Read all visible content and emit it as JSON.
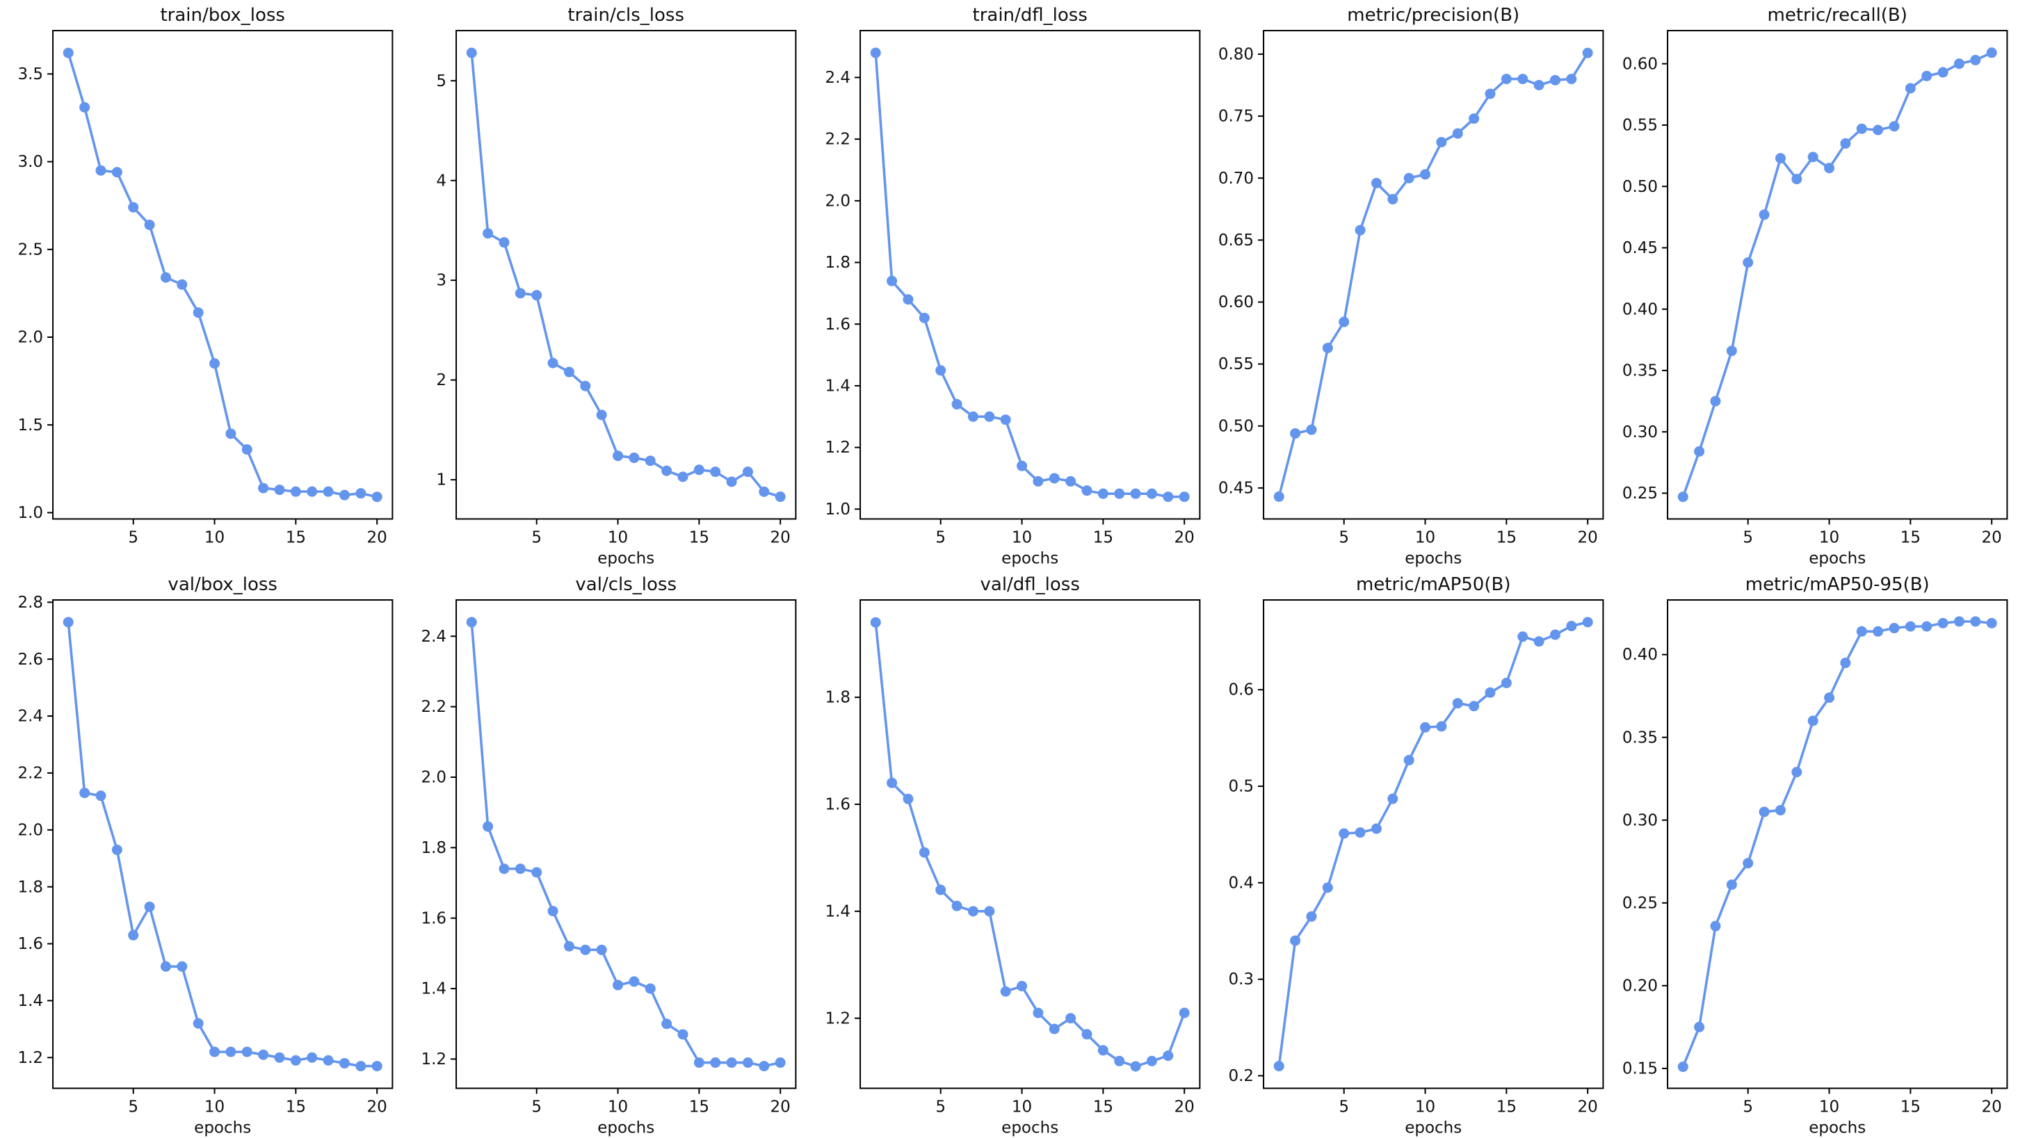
{
  "figure": {
    "rows": 2,
    "cols": 5,
    "background": "#ffffff",
    "line_color": "#6495ED",
    "marker_color": "#6495ED",
    "axis_color": "#000000",
    "text_color": "#111111",
    "grid": false,
    "legend": "none"
  },
  "chart_data": [
    {
      "type": "line",
      "title": "train/box_loss",
      "xlabel": "",
      "ylabel": "",
      "x": [
        1,
        2,
        3,
        4,
        5,
        6,
        7,
        8,
        9,
        10,
        11,
        12,
        13,
        14,
        15,
        16,
        17,
        18,
        19,
        20
      ],
      "values": [
        3.62,
        3.31,
        2.95,
        2.94,
        2.74,
        2.64,
        2.34,
        2.3,
        2.14,
        1.85,
        1.45,
        1.36,
        1.14,
        1.13,
        1.12,
        1.12,
        1.12,
        1.1,
        1.11,
        1.09
      ],
      "xticks": [
        5,
        10,
        15,
        20
      ],
      "ytick_values": [
        1.0,
        1.5,
        2.0,
        2.5,
        3.0,
        3.5
      ],
      "ytick_labels": [
        "1.0",
        "1.5",
        "2.0",
        "2.5",
        "3.0",
        "3.5"
      ],
      "xlim": [
        0.05,
        20.95
      ],
      "ylim": [
        0.964,
        3.747
      ]
    },
    {
      "type": "line",
      "title": "train/cls_loss",
      "xlabel": "epochs",
      "ylabel": "",
      "x": [
        1,
        2,
        3,
        4,
        5,
        6,
        7,
        8,
        9,
        10,
        11,
        12,
        13,
        14,
        15,
        16,
        17,
        18,
        19,
        20
      ],
      "values": [
        5.28,
        3.47,
        3.38,
        2.87,
        2.85,
        2.17,
        2.08,
        1.94,
        1.65,
        1.24,
        1.22,
        1.19,
        1.09,
        1.03,
        1.1,
        1.08,
        0.98,
        1.08,
        0.88,
        0.83
      ],
      "xticks": [
        5,
        10,
        15,
        20
      ],
      "ytick_values": [
        1,
        2,
        3,
        4,
        5
      ],
      "ytick_labels": [
        "1",
        "2",
        "3",
        "4",
        "5"
      ],
      "xlim": [
        0.05,
        20.95
      ],
      "ylim": [
        0.607,
        5.503
      ]
    },
    {
      "type": "line",
      "title": "train/dfl_loss",
      "xlabel": "epochs",
      "ylabel": "",
      "x": [
        1,
        2,
        3,
        4,
        5,
        6,
        7,
        8,
        9,
        10,
        11,
        12,
        13,
        14,
        15,
        16,
        17,
        18,
        19,
        20
      ],
      "values": [
        2.48,
        1.74,
        1.68,
        1.62,
        1.45,
        1.34,
        1.3,
        1.3,
        1.29,
        1.14,
        1.09,
        1.1,
        1.09,
        1.06,
        1.05,
        1.05,
        1.05,
        1.05,
        1.04,
        1.04
      ],
      "xticks": [
        5,
        10,
        15,
        20
      ],
      "ytick_values": [
        1.0,
        1.2,
        1.4,
        1.6,
        1.8,
        2.0,
        2.2,
        2.4
      ],
      "ytick_labels": [
        "1.0",
        "1.2",
        "1.4",
        "1.6",
        "1.8",
        "2.0",
        "2.2",
        "2.4"
      ],
      "xlim": [
        0.05,
        20.95
      ],
      "ylim": [
        0.968,
        2.552
      ]
    },
    {
      "type": "line",
      "title": "metric/precision(B)",
      "xlabel": "epochs",
      "ylabel": "",
      "x": [
        1,
        2,
        3,
        4,
        5,
        6,
        7,
        8,
        9,
        10,
        11,
        12,
        13,
        14,
        15,
        16,
        17,
        18,
        19,
        20
      ],
      "values": [
        0.443,
        0.494,
        0.497,
        0.563,
        0.584,
        0.658,
        0.696,
        0.683,
        0.7,
        0.703,
        0.729,
        0.736,
        0.748,
        0.768,
        0.78,
        0.78,
        0.775,
        0.779,
        0.78,
        0.801
      ],
      "xticks": [
        5,
        10,
        15,
        20
      ],
      "ytick_values": [
        0.45,
        0.5,
        0.55,
        0.6,
        0.65,
        0.7,
        0.75,
        0.8
      ],
      "ytick_labels": [
        "0.45",
        "0.50",
        "0.55",
        "0.60",
        "0.65",
        "0.70",
        "0.75",
        "0.80"
      ],
      "xlim": [
        0.05,
        20.95
      ],
      "ylim": [
        0.425,
        0.819
      ]
    },
    {
      "type": "line",
      "title": "metric/recall(B)",
      "xlabel": "epochs",
      "ylabel": "",
      "x": [
        1,
        2,
        3,
        4,
        5,
        6,
        7,
        8,
        9,
        10,
        11,
        12,
        13,
        14,
        15,
        16,
        17,
        18,
        19,
        20
      ],
      "values": [
        0.247,
        0.284,
        0.325,
        0.366,
        0.438,
        0.477,
        0.523,
        0.506,
        0.524,
        0.515,
        0.535,
        0.547,
        0.546,
        0.549,
        0.58,
        0.59,
        0.593,
        0.6,
        0.603,
        0.609
      ],
      "xticks": [
        5,
        10,
        15,
        20
      ],
      "ytick_values": [
        0.25,
        0.3,
        0.35,
        0.4,
        0.45,
        0.5,
        0.55,
        0.6
      ],
      "ytick_labels": [
        "0.25",
        "0.30",
        "0.35",
        "0.40",
        "0.45",
        "0.50",
        "0.55",
        "0.60"
      ],
      "xlim": [
        0.05,
        20.95
      ],
      "ylim": [
        0.229,
        0.627
      ]
    },
    {
      "type": "line",
      "title": "val/box_loss",
      "xlabel": "epochs",
      "ylabel": "",
      "x": [
        1,
        2,
        3,
        4,
        5,
        6,
        7,
        8,
        9,
        10,
        11,
        12,
        13,
        14,
        15,
        16,
        17,
        18,
        19,
        20
      ],
      "values": [
        2.73,
        2.13,
        2.12,
        1.93,
        1.63,
        1.73,
        1.52,
        1.52,
        1.32,
        1.22,
        1.22,
        1.22,
        1.21,
        1.2,
        1.19,
        1.2,
        1.19,
        1.18,
        1.17,
        1.17
      ],
      "xticks": [
        5,
        10,
        15,
        20
      ],
      "ytick_values": [
        1.2,
        1.4,
        1.6,
        1.8,
        2.0,
        2.2,
        2.4,
        2.6,
        2.8
      ],
      "ytick_labels": [
        "1.2",
        "1.4",
        "1.6",
        "1.8",
        "2.0",
        "2.2",
        "2.4",
        "2.6",
        "2.8"
      ],
      "xlim": [
        0.05,
        20.95
      ],
      "ylim": [
        1.092,
        2.808
      ]
    },
    {
      "type": "line",
      "title": "val/cls_loss",
      "xlabel": "epochs",
      "ylabel": "",
      "x": [
        1,
        2,
        3,
        4,
        5,
        6,
        7,
        8,
        9,
        10,
        11,
        12,
        13,
        14,
        15,
        16,
        17,
        18,
        19,
        20
      ],
      "values": [
        2.44,
        1.86,
        1.74,
        1.74,
        1.73,
        1.62,
        1.52,
        1.51,
        1.51,
        1.41,
        1.42,
        1.4,
        1.3,
        1.27,
        1.19,
        1.19,
        1.19,
        1.19,
        1.18,
        1.19
      ],
      "xticks": [
        5,
        10,
        15,
        20
      ],
      "ytick_values": [
        1.2,
        1.4,
        1.6,
        1.8,
        2.0,
        2.2,
        2.4
      ],
      "ytick_labels": [
        "1.2",
        "1.4",
        "1.6",
        "1.8",
        "2.0",
        "2.2",
        "2.4"
      ],
      "xlim": [
        0.05,
        20.95
      ],
      "ylim": [
        1.117,
        2.503
      ]
    },
    {
      "type": "line",
      "title": "val/dfl_loss",
      "xlabel": "epochs",
      "ylabel": "",
      "x": [
        1,
        2,
        3,
        4,
        5,
        6,
        7,
        8,
        9,
        10,
        11,
        12,
        13,
        14,
        15,
        16,
        17,
        18,
        19,
        20
      ],
      "values": [
        1.94,
        1.64,
        1.61,
        1.51,
        1.44,
        1.41,
        1.4,
        1.4,
        1.25,
        1.26,
        1.21,
        1.18,
        1.2,
        1.17,
        1.14,
        1.12,
        1.11,
        1.12,
        1.13,
        1.21
      ],
      "xticks": [
        5,
        10,
        15,
        20
      ],
      "ytick_values": [
        1.2,
        1.4,
        1.6,
        1.8
      ],
      "ytick_labels": [
        "1.2",
        "1.4",
        "1.6",
        "1.8"
      ],
      "xlim": [
        0.05,
        20.95
      ],
      "ylim": [
        1.069,
        1.982
      ]
    },
    {
      "type": "line",
      "title": "metric/mAP50(B)",
      "xlabel": "epochs",
      "ylabel": "",
      "x": [
        1,
        2,
        3,
        4,
        5,
        6,
        7,
        8,
        9,
        10,
        11,
        12,
        13,
        14,
        15,
        16,
        17,
        18,
        19,
        20
      ],
      "values": [
        0.21,
        0.34,
        0.365,
        0.395,
        0.451,
        0.452,
        0.456,
        0.487,
        0.527,
        0.561,
        0.562,
        0.586,
        0.583,
        0.597,
        0.607,
        0.655,
        0.65,
        0.657,
        0.666,
        0.67
      ],
      "xticks": [
        5,
        10,
        15,
        20
      ],
      "ytick_values": [
        0.2,
        0.3,
        0.4,
        0.5,
        0.6
      ],
      "ytick_labels": [
        "0.2",
        "0.3",
        "0.4",
        "0.5",
        "0.6"
      ],
      "xlim": [
        0.05,
        20.95
      ],
      "ylim": [
        0.187,
        0.693
      ]
    },
    {
      "type": "line",
      "title": "metric/mAP50-95(B)",
      "xlabel": "epochs",
      "ylabel": "",
      "x": [
        1,
        2,
        3,
        4,
        5,
        6,
        7,
        8,
        9,
        10,
        11,
        12,
        13,
        14,
        15,
        16,
        17,
        18,
        19,
        20
      ],
      "values": [
        0.151,
        0.175,
        0.236,
        0.261,
        0.274,
        0.305,
        0.306,
        0.329,
        0.36,
        0.374,
        0.395,
        0.414,
        0.414,
        0.416,
        0.417,
        0.417,
        0.419,
        0.42,
        0.42,
        0.419
      ],
      "xticks": [
        5,
        10,
        15,
        20
      ],
      "ytick_values": [
        0.15,
        0.2,
        0.25,
        0.3,
        0.35,
        0.4
      ],
      "ytick_labels": [
        "0.15",
        "0.20",
        "0.25",
        "0.30",
        "0.35",
        "0.40"
      ],
      "xlim": [
        0.05,
        20.95
      ],
      "ylim": [
        0.138,
        0.433
      ]
    }
  ]
}
